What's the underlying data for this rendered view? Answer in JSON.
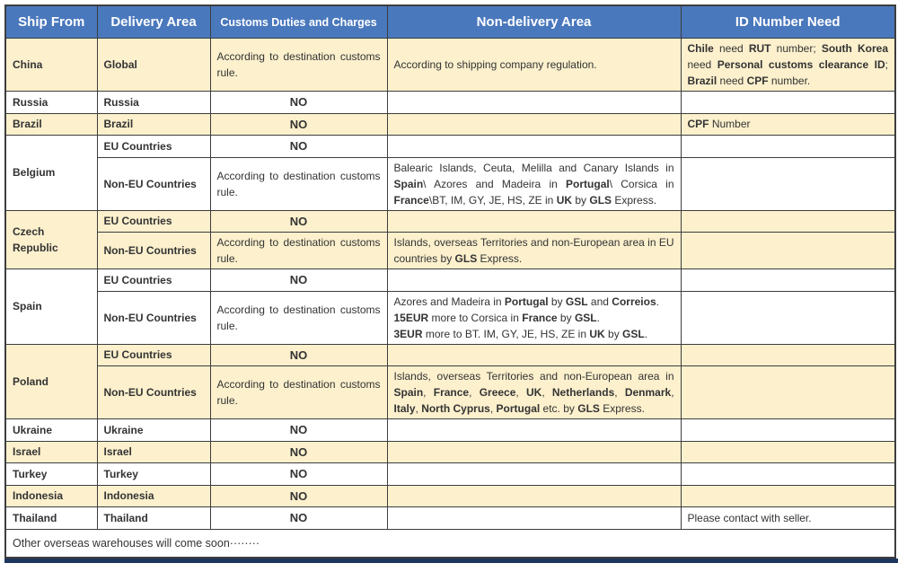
{
  "colors": {
    "header_bg": "#4a78bd",
    "header_text": "#ffffff",
    "cream": "#fcf0cd",
    "border": "#3d3d3d",
    "bar": "#1e355e",
    "text": "#333333"
  },
  "table": {
    "headers": [
      "Ship From",
      "Delivery Area",
      "Customs Duties and Charges",
      "Non-delivery Area",
      "ID Number Need"
    ],
    "footer_note": "Other overseas warehouses will come soon········",
    "rows": [
      {
        "bg": "cream",
        "cells": [
          {
            "lines": [
              [
                {
                  "t": "China",
                  "b": 1
                }
              ]
            ]
          },
          {
            "lines": [
              [
                {
                  "t": "Global",
                  "b": 1
                }
              ]
            ]
          },
          {
            "align": "justify",
            "lines": [
              [
                {
                  "t": "According to destination customs rule."
                }
              ]
            ]
          },
          {
            "lines": [
              [
                {
                  "t": "According to shipping company regulation."
                }
              ]
            ]
          },
          {
            "align": "justify",
            "lines": [
              [
                {
                  "t": "Chile",
                  "b": 1
                },
                {
                  "t": " need "
                },
                {
                  "t": "RUT",
                  "b": 1
                },
                {
                  "t": " number; "
                },
                {
                  "t": "South Korea",
                  "b": 1
                },
                {
                  "t": " need "
                },
                {
                  "t": "Personal customs clearance ID",
                  "b": 1
                },
                {
                  "t": "; "
                },
                {
                  "t": "Brazil",
                  "b": 1
                },
                {
                  "t": " need "
                },
                {
                  "t": "CPF",
                  "b": 1
                },
                {
                  "t": " number."
                }
              ]
            ]
          }
        ]
      },
      {
        "bg": "white",
        "cells": [
          {
            "lines": [
              [
                {
                  "t": "Russia",
                  "b": 1
                }
              ]
            ]
          },
          {
            "lines": [
              [
                {
                  "t": "Russia",
                  "b": 1
                }
              ]
            ]
          },
          {
            "align": "center",
            "lines": [
              [
                {
                  "t": "NO",
                  "b": 1
                }
              ]
            ]
          },
          {
            "lines": []
          },
          {
            "lines": []
          }
        ]
      },
      {
        "bg": "cream",
        "cells": [
          {
            "lines": [
              [
                {
                  "t": "Brazil",
                  "b": 1
                }
              ]
            ]
          },
          {
            "lines": [
              [
                {
                  "t": "Brazil",
                  "b": 1
                }
              ]
            ]
          },
          {
            "align": "center",
            "lines": [
              [
                {
                  "t": "NO",
                  "b": 1
                }
              ]
            ]
          },
          {
            "lines": []
          },
          {
            "lines": [
              [
                {
                  "t": "CPF",
                  "b": 1
                },
                {
                  "t": " Number"
                }
              ]
            ]
          }
        ]
      },
      {
        "bg": "white",
        "cells": [
          {
            "rowspan": 2,
            "lines": [
              [
                {
                  "t": "Belgium",
                  "b": 1
                }
              ]
            ]
          },
          {
            "lines": [
              [
                {
                  "t": "EU Countries",
                  "b": 1
                }
              ]
            ]
          },
          {
            "align": "center",
            "lines": [
              [
                {
                  "t": "NO",
                  "b": 1
                }
              ]
            ]
          },
          {
            "lines": []
          },
          {
            "lines": []
          }
        ]
      },
      {
        "bg": "white",
        "cells": [
          {
            "lines": [
              [
                {
                  "t": "Non-EU Countries",
                  "b": 1
                }
              ]
            ]
          },
          {
            "align": "justify",
            "lines": [
              [
                {
                  "t": "According to destination customs rule."
                }
              ]
            ]
          },
          {
            "align": "justify",
            "lines": [
              [
                {
                  "t": "Balearic Islands, Ceuta, Melilla and Canary Islands in "
                },
                {
                  "t": "Spain",
                  "b": 1
                },
                {
                  "t": "\\ Azores and Madeira in "
                },
                {
                  "t": "Portugal",
                  "b": 1
                },
                {
                  "t": "\\ Corsica in "
                },
                {
                  "t": "France",
                  "b": 1
                },
                {
                  "t": "\\BT, IM, GY, JE, HS, ZE in "
                },
                {
                  "t": "UK",
                  "b": 1
                },
                {
                  "t": " by "
                },
                {
                  "t": "GLS",
                  "b": 1
                },
                {
                  "t": " Express."
                }
              ]
            ]
          },
          {
            "lines": []
          }
        ]
      },
      {
        "bg": "cream",
        "cells": [
          {
            "rowspan": 2,
            "lines": [
              [
                {
                  "t": "Czech Republic",
                  "b": 1
                }
              ]
            ]
          },
          {
            "lines": [
              [
                {
                  "t": "EU Countries",
                  "b": 1
                }
              ]
            ]
          },
          {
            "align": "center",
            "lines": [
              [
                {
                  "t": "NO",
                  "b": 1
                }
              ]
            ]
          },
          {
            "lines": []
          },
          {
            "lines": []
          }
        ]
      },
      {
        "bg": "cream",
        "cells": [
          {
            "lines": [
              [
                {
                  "t": "Non-EU Countries",
                  "b": 1
                }
              ]
            ]
          },
          {
            "align": "justify",
            "lines": [
              [
                {
                  "t": "According to destination customs rule."
                }
              ]
            ]
          },
          {
            "align": "justify",
            "lines": [
              [
                {
                  "t": "Islands, overseas Territories and non-European area in EU countries by "
                },
                {
                  "t": "GLS",
                  "b": 1
                },
                {
                  "t": " Express."
                }
              ]
            ]
          },
          {
            "lines": []
          }
        ]
      },
      {
        "bg": "white",
        "cells": [
          {
            "rowspan": 2,
            "lines": [
              [
                {
                  "t": "Spain",
                  "b": 1
                }
              ]
            ]
          },
          {
            "lines": [
              [
                {
                  "t": "EU Countries",
                  "b": 1
                }
              ]
            ]
          },
          {
            "align": "center",
            "lines": [
              [
                {
                  "t": "NO",
                  "b": 1
                }
              ]
            ]
          },
          {
            "lines": []
          },
          {
            "lines": []
          }
        ]
      },
      {
        "bg": "white",
        "cells": [
          {
            "lines": [
              [
                {
                  "t": "Non-EU Countries",
                  "b": 1
                }
              ]
            ]
          },
          {
            "align": "justify",
            "lines": [
              [
                {
                  "t": "According to destination customs rule."
                }
              ]
            ]
          },
          {
            "lines": [
              [
                {
                  "t": "Azores and Madeira in "
                },
                {
                  "t": "Portugal",
                  "b": 1
                },
                {
                  "t": " by "
                },
                {
                  "t": "GSL",
                  "b": 1
                },
                {
                  "t": " and "
                },
                {
                  "t": "Correios",
                  "b": 1
                },
                {
                  "t": "."
                }
              ],
              [
                {
                  "t": "15EUR",
                  "b": 1
                },
                {
                  "t": " more to Corsica in "
                },
                {
                  "t": "France",
                  "b": 1
                },
                {
                  "t": " by "
                },
                {
                  "t": "GSL",
                  "b": 1
                },
                {
                  "t": "."
                }
              ],
              [
                {
                  "t": "3EUR",
                  "b": 1
                },
                {
                  "t": " more to BT. IM, GY, JE, HS, ZE in "
                },
                {
                  "t": "UK",
                  "b": 1
                },
                {
                  "t": " by "
                },
                {
                  "t": "GSL",
                  "b": 1
                },
                {
                  "t": "."
                }
              ]
            ]
          },
          {
            "lines": []
          }
        ]
      },
      {
        "bg": "cream",
        "cells": [
          {
            "rowspan": 2,
            "lines": [
              [
                {
                  "t": "Poland",
                  "b": 1
                }
              ]
            ]
          },
          {
            "lines": [
              [
                {
                  "t": "EU Countries",
                  "b": 1
                }
              ]
            ]
          },
          {
            "align": "center",
            "lines": [
              [
                {
                  "t": "NO",
                  "b": 1
                }
              ]
            ]
          },
          {
            "lines": []
          },
          {
            "lines": []
          }
        ]
      },
      {
        "bg": "cream",
        "cells": [
          {
            "lines": [
              [
                {
                  "t": "Non-EU Countries",
                  "b": 1
                }
              ]
            ]
          },
          {
            "align": "justify",
            "lines": [
              [
                {
                  "t": "According to destination customs rule."
                }
              ]
            ]
          },
          {
            "align": "justify",
            "lines": [
              [
                {
                  "t": "Islands, overseas Territories and non-European area in "
                },
                {
                  "t": "Spain",
                  "b": 1
                },
                {
                  "t": ", "
                },
                {
                  "t": "France",
                  "b": 1
                },
                {
                  "t": ", "
                },
                {
                  "t": "Greece",
                  "b": 1
                },
                {
                  "t": ", "
                },
                {
                  "t": "UK",
                  "b": 1
                },
                {
                  "t": ", "
                },
                {
                  "t": "Netherlands",
                  "b": 1
                },
                {
                  "t": ", "
                },
                {
                  "t": "Denmark",
                  "b": 1
                },
                {
                  "t": ", "
                },
                {
                  "t": "Italy",
                  "b": 1
                },
                {
                  "t": ", "
                },
                {
                  "t": "North Cyprus",
                  "b": 1
                },
                {
                  "t": ", "
                },
                {
                  "t": "Portugal",
                  "b": 1
                },
                {
                  "t": " etc. by "
                },
                {
                  "t": "GLS",
                  "b": 1
                },
                {
                  "t": " Express."
                }
              ]
            ]
          },
          {
            "lines": []
          }
        ]
      },
      {
        "bg": "white",
        "cells": [
          {
            "lines": [
              [
                {
                  "t": "Ukraine",
                  "b": 1
                }
              ]
            ]
          },
          {
            "lines": [
              [
                {
                  "t": "Ukraine",
                  "b": 1
                }
              ]
            ]
          },
          {
            "align": "center",
            "lines": [
              [
                {
                  "t": "NO",
                  "b": 1
                }
              ]
            ]
          },
          {
            "lines": []
          },
          {
            "lines": []
          }
        ]
      },
      {
        "bg": "cream",
        "cells": [
          {
            "lines": [
              [
                {
                  "t": "Israel",
                  "b": 1
                }
              ]
            ]
          },
          {
            "lines": [
              [
                {
                  "t": "Israel",
                  "b": 1
                }
              ]
            ]
          },
          {
            "align": "center",
            "lines": [
              [
                {
                  "t": "NO",
                  "b": 1
                }
              ]
            ]
          },
          {
            "lines": []
          },
          {
            "lines": []
          }
        ]
      },
      {
        "bg": "white",
        "cells": [
          {
            "lines": [
              [
                {
                  "t": "Turkey",
                  "b": 1
                }
              ]
            ]
          },
          {
            "lines": [
              [
                {
                  "t": "Turkey",
                  "b": 1
                }
              ]
            ]
          },
          {
            "align": "center",
            "lines": [
              [
                {
                  "t": "NO",
                  "b": 1
                }
              ]
            ]
          },
          {
            "lines": []
          },
          {
            "lines": []
          }
        ]
      },
      {
        "bg": "cream",
        "cells": [
          {
            "lines": [
              [
                {
                  "t": "Indonesia",
                  "b": 1
                }
              ]
            ]
          },
          {
            "lines": [
              [
                {
                  "t": "Indonesia",
                  "b": 1
                }
              ]
            ]
          },
          {
            "align": "center",
            "lines": [
              [
                {
                  "t": "NO",
                  "b": 1
                }
              ]
            ]
          },
          {
            "lines": []
          },
          {
            "lines": []
          }
        ]
      },
      {
        "bg": "white",
        "cells": [
          {
            "lines": [
              [
                {
                  "t": "Thailand",
                  "b": 1
                }
              ]
            ]
          },
          {
            "lines": [
              [
                {
                  "t": "Thailand",
                  "b": 1
                }
              ]
            ]
          },
          {
            "align": "center",
            "lines": [
              [
                {
                  "t": "NO",
                  "b": 1
                }
              ]
            ]
          },
          {
            "lines": []
          },
          {
            "lines": [
              [
                {
                  "t": "Please contact with seller."
                }
              ]
            ]
          }
        ]
      }
    ]
  }
}
